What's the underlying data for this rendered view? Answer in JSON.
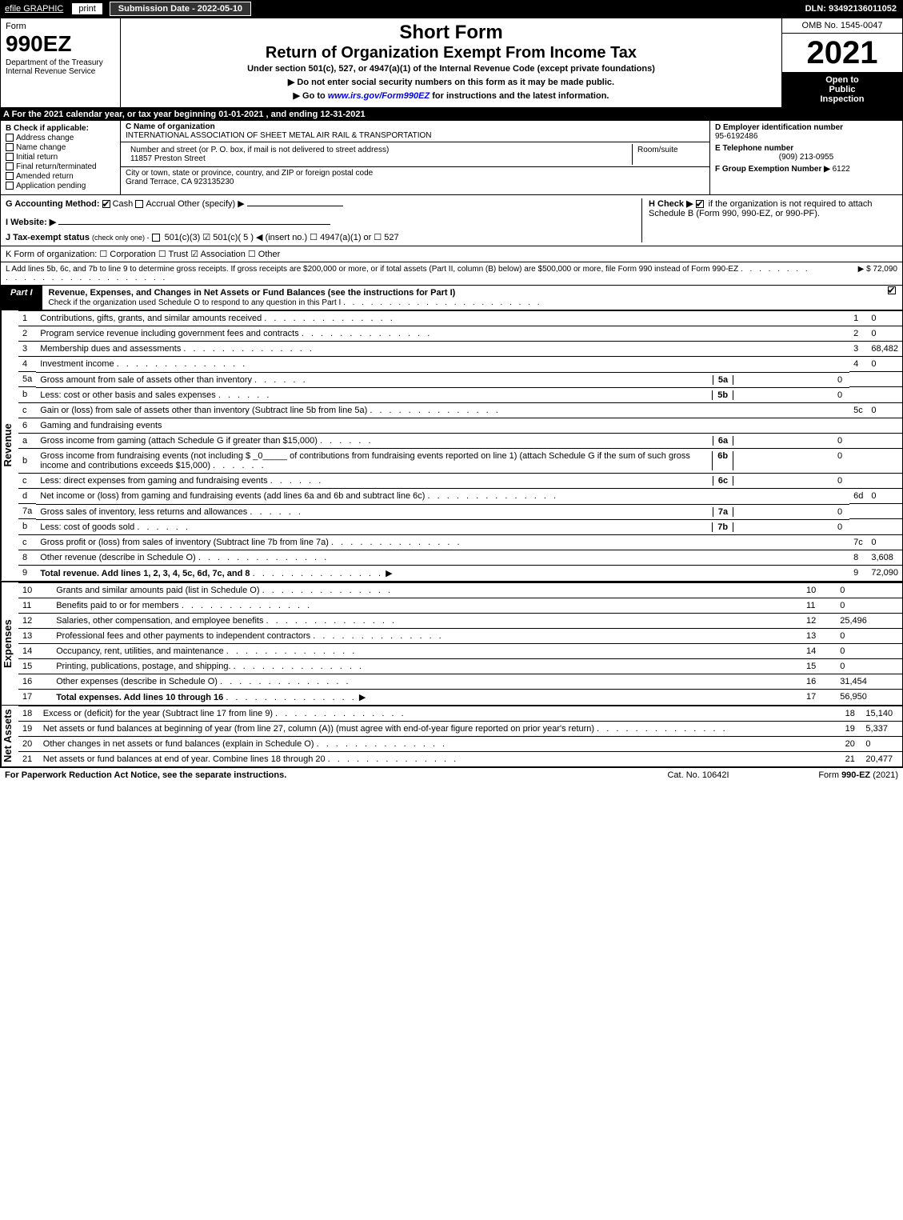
{
  "header": {
    "efile": "efile GRAPHIC",
    "print": "print",
    "subdate_label": "Submission Date - 2022-05-10",
    "dln": "DLN: 93492136011052"
  },
  "form_left": {
    "form_word": "Form",
    "form_num": "990EZ",
    "dept": "Department of the Treasury\nInternal Revenue Service"
  },
  "form_mid": {
    "short_form": "Short Form",
    "title": "Return of Organization Exempt From Income Tax",
    "subtitle": "Under section 501(c), 527, or 4947(a)(1) of the Internal Revenue Code (except private foundations)",
    "instruct1": "▶ Do not enter social security numbers on this form as it may be made public.",
    "instruct2_pre": "▶ Go to ",
    "instruct2_link": "www.irs.gov/Form990EZ",
    "instruct2_post": " for instructions and the latest information."
  },
  "form_right": {
    "omb": "OMB No. 1545-0047",
    "year": "2021",
    "open": "Open to\nPublic\nInspection"
  },
  "line_a": "A  For the 2021 calendar year, or tax year beginning 01-01-2021 , and ending 12-31-2021",
  "col_b": {
    "header": "B  Check if applicable:",
    "items": [
      {
        "label": "Address change",
        "checked": false
      },
      {
        "label": "Name change",
        "checked": false
      },
      {
        "label": "Initial return",
        "checked": false
      },
      {
        "label": "Final return/terminated",
        "checked": false
      },
      {
        "label": "Amended return",
        "checked": false
      },
      {
        "label": "Application pending",
        "checked": false
      }
    ]
  },
  "col_c": {
    "name_label": "C Name of organization",
    "name": "INTERNATIONAL ASSOCIATION OF SHEET METAL AIR RAIL & TRANSPORTATION",
    "street_label": "Number and street (or P. O. box, if mail is not delivered to street address)",
    "room_label": "Room/suite",
    "street": "11857 Preston Street",
    "city_label": "City or town, state or province, country, and ZIP or foreign postal code",
    "city": "Grand Terrace, CA  923135230"
  },
  "col_d": {
    "ein_label": "D Employer identification number",
    "ein": "95-6192486",
    "phone_label": "E Telephone number",
    "phone": "(909) 213-0955",
    "group_label": "F Group Exemption Number  ▶",
    "group": "6122"
  },
  "row_g": {
    "g_label": "G Accounting Method:",
    "g_cash": "Cash",
    "g_accrual": "Accrual",
    "g_other": "Other (specify) ▶",
    "h_label": "H  Check ▶",
    "h_text": "if the organization is not required to attach Schedule B (Form 990, 990-EZ, or 990-PF).",
    "i_label": "I Website: ▶",
    "j_label": "J Tax-exempt status",
    "j_sub": "(check only one) ‐",
    "j_opts": "501(c)(3)  ☑ 501(c)( 5 ) ◀ (insert no.)  ☐ 4947(a)(1) or  ☐ 527"
  },
  "row_k": "K Form of organization:   ☐ Corporation   ☐ Trust   ☑ Association   ☐ Other",
  "row_l": {
    "text": "L Add lines 5b, 6c, and 7b to line 9 to determine gross receipts. If gross receipts are $200,000 or more, or if total assets (Part II, column (B) below) are $500,000 or more, file Form 990 instead of Form 990-EZ",
    "val": "▶ $ 72,090"
  },
  "part1": {
    "label": "Part I",
    "title": "Revenue, Expenses, and Changes in Net Assets or Fund Balances (see the instructions for Part I)",
    "check_line": "Check if the organization used Schedule O to respond to any question in this Part I"
  },
  "vlabels": {
    "revenue": "Revenue",
    "expenses": "Expenses",
    "netassets": "Net Assets"
  },
  "revenue_rows": [
    {
      "n": "1",
      "desc": "Contributions, gifts, grants, and similar amounts received",
      "ref": "1",
      "val": "0"
    },
    {
      "n": "2",
      "desc": "Program service revenue including government fees and contracts",
      "ref": "2",
      "val": "0"
    },
    {
      "n": "3",
      "desc": "Membership dues and assessments",
      "ref": "3",
      "val": "68,482"
    },
    {
      "n": "4",
      "desc": "Investment income",
      "ref": "4",
      "val": "0"
    }
  ],
  "line5a": {
    "n": "5a",
    "desc": "Gross amount from sale of assets other than inventory",
    "mn": "5a",
    "mv": "0"
  },
  "line5b": {
    "n": "b",
    "desc": "Less: cost or other basis and sales expenses",
    "mn": "5b",
    "mv": "0"
  },
  "line5c": {
    "n": "c",
    "desc": "Gain or (loss) from sale of assets other than inventory (Subtract line 5b from line 5a)",
    "ref": "5c",
    "val": "0"
  },
  "line6": {
    "n": "6",
    "desc": "Gaming and fundraising events"
  },
  "line6a": {
    "n": "a",
    "desc": "Gross income from gaming (attach Schedule G if greater than $15,000)",
    "mn": "6a",
    "mv": "0"
  },
  "line6b": {
    "n": "b",
    "desc": "Gross income from fundraising events (not including $ _0_____ of contributions from fundraising events reported on line 1) (attach Schedule G if the sum of such gross income and contributions exceeds $15,000)",
    "mn": "6b",
    "mv": "0"
  },
  "line6c": {
    "n": "c",
    "desc": "Less: direct expenses from gaming and fundraising events",
    "mn": "6c",
    "mv": "0"
  },
  "line6d": {
    "n": "d",
    "desc": "Net income or (loss) from gaming and fundraising events (add lines 6a and 6b and subtract line 6c)",
    "ref": "6d",
    "val": "0"
  },
  "line7a": {
    "n": "7a",
    "desc": "Gross sales of inventory, less returns and allowances",
    "mn": "7a",
    "mv": "0"
  },
  "line7b": {
    "n": "b",
    "desc": "Less: cost of goods sold",
    "mn": "7b",
    "mv": "0"
  },
  "line7c": {
    "n": "c",
    "desc": "Gross profit or (loss) from sales of inventory (Subtract line 7b from line 7a)",
    "ref": "7c",
    "val": "0"
  },
  "line8": {
    "n": "8",
    "desc": "Other revenue (describe in Schedule O)",
    "ref": "8",
    "val": "3,608"
  },
  "line9": {
    "n": "9",
    "desc": "Total revenue. Add lines 1, 2, 3, 4, 5c, 6d, 7c, and 8",
    "ref": "9",
    "val": "72,090"
  },
  "expense_rows": [
    {
      "n": "10",
      "desc": "Grants and similar amounts paid (list in Schedule O)",
      "ref": "10",
      "val": "0"
    },
    {
      "n": "11",
      "desc": "Benefits paid to or for members",
      "ref": "11",
      "val": "0"
    },
    {
      "n": "12",
      "desc": "Salaries, other compensation, and employee benefits",
      "ref": "12",
      "val": "25,496"
    },
    {
      "n": "13",
      "desc": "Professional fees and other payments to independent contractors",
      "ref": "13",
      "val": "0"
    },
    {
      "n": "14",
      "desc": "Occupancy, rent, utilities, and maintenance",
      "ref": "14",
      "val": "0"
    },
    {
      "n": "15",
      "desc": "Printing, publications, postage, and shipping.",
      "ref": "15",
      "val": "0"
    },
    {
      "n": "16",
      "desc": "Other expenses (describe in Schedule O)",
      "ref": "16",
      "val": "31,454"
    },
    {
      "n": "17",
      "desc": "Total expenses. Add lines 10 through 16",
      "ref": "17",
      "val": "56,950",
      "bold": true
    }
  ],
  "netasset_rows": [
    {
      "n": "18",
      "desc": "Excess or (deficit) for the year (Subtract line 17 from line 9)",
      "ref": "18",
      "val": "15,140"
    },
    {
      "n": "19",
      "desc": "Net assets or fund balances at beginning of year (from line 27, column (A)) (must agree with end-of-year figure reported on prior year's return)",
      "ref": "19",
      "val": "5,337"
    },
    {
      "n": "20",
      "desc": "Other changes in net assets or fund balances (explain in Schedule O)",
      "ref": "20",
      "val": "0"
    },
    {
      "n": "21",
      "desc": "Net assets or fund balances at end of year. Combine lines 18 through 20",
      "ref": "21",
      "val": "20,477"
    }
  ],
  "footer": {
    "left": "For Paperwork Reduction Act Notice, see the separate instructions.",
    "center": "Cat. No. 10642I",
    "right_pre": "Form ",
    "right_form": "990-EZ",
    "right_post": " (2021)"
  }
}
